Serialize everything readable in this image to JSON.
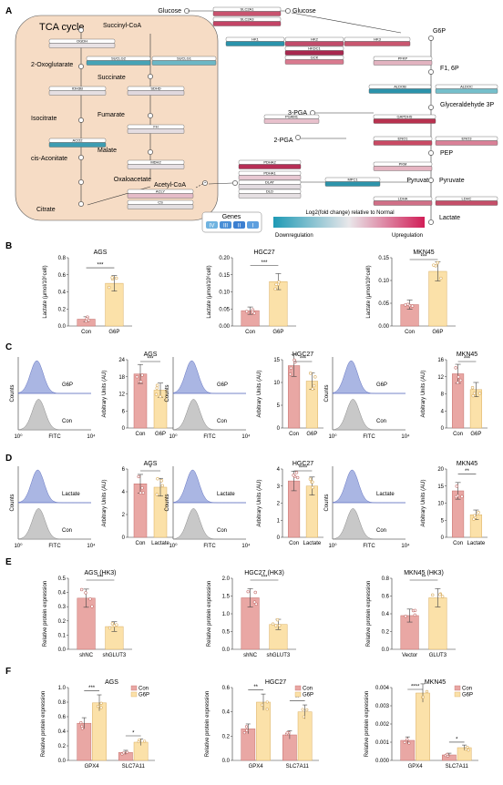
{
  "panelA": {
    "letter": "A",
    "tca_title": "TCA cycle",
    "metabolites": [
      "Glucose",
      "Glucose",
      "G6P",
      "F1, 6P",
      "Glyceraldehyde 3P",
      "3-PGA",
      "2-PGA",
      "PEP",
      "Pyruvate",
      "Pyruvate",
      "Acetyl-CoA",
      "Lactate",
      "Succinyl-CoA",
      "2-Oxoglutarate",
      "Succinate",
      "Isocitrate",
      "Fumarate",
      "Malate",
      "cis-Aconitate",
      "Oxaloacetate",
      "Citrate"
    ],
    "genes": [
      {
        "name": "SLC2A1",
        "color": "#c9536f"
      },
      {
        "name": "SLC2A3",
        "color": "#c34466"
      },
      {
        "name": "HK1",
        "color": "#2a93ab"
      },
      {
        "name": "HK2",
        "color": "#c24b6a"
      },
      {
        "name": "HK3",
        "color": "#c9566f"
      },
      {
        "name": "HKDC1",
        "color": "#a8284f"
      },
      {
        "name": "GCK",
        "color": "#d97a8f"
      },
      {
        "name": "PFKP",
        "color": "#e2b3c0"
      },
      {
        "name": "ALDOB",
        "color": "#2c93ab"
      },
      {
        "name": "ALDOC",
        "color": "#75bfcb"
      },
      {
        "name": "GAPDHS",
        "color": "#b8324f"
      },
      {
        "name": "PGAM1",
        "color": "#e8c0cc"
      },
      {
        "name": "ENO1",
        "color": "#c94a64"
      },
      {
        "name": "ENO3",
        "color": "#d98097"
      },
      {
        "name": "PKM",
        "color": "#e6b5c2"
      },
      {
        "name": "MPC1",
        "color": "#2d94ab"
      },
      {
        "name": "LDHA",
        "color": "#d06f87"
      },
      {
        "name": "LDHC",
        "color": "#c54e69"
      },
      {
        "name": "PDHA2",
        "color": "#b72e55"
      },
      {
        "name": "PDHA1",
        "color": "#e8c8d2"
      },
      {
        "name": "DLAT",
        "color": "#e3dce1"
      },
      {
        "name": "DLD",
        "color": "#e6e0e3"
      },
      {
        "name": "OGDH",
        "color": "#e8e2e5"
      },
      {
        "name": "SUCLG2",
        "color": "#46a3b6"
      },
      {
        "name": "SUCLG1",
        "color": "#6cb7c5"
      },
      {
        "name": "SDHD",
        "color": "#e0d8de"
      },
      {
        "name": "FH",
        "color": "#e4dde1"
      },
      {
        "name": "MDH2",
        "color": "#e7e0e4"
      },
      {
        "name": "IDH3B",
        "color": "#e5dfe2"
      },
      {
        "name": "ACO2",
        "color": "#3e9db2"
      },
      {
        "name": "ACLY",
        "color": "#e5bcc8"
      },
      {
        "name": "CS",
        "color": "#e3dfe1"
      }
    ],
    "legend_title": "Genes",
    "legend_scale_title": "Log2(fold change) relative to Normal",
    "legend_low": "Downregulation",
    "legend_high": "Upregulation",
    "legend_cells": [
      "IV",
      "III",
      "II",
      "I"
    ]
  },
  "panelB": {
    "letter": "B",
    "ylabel": "Lactate (μmol/10⁶cell)",
    "charts": [
      {
        "title": "AGS",
        "categories": [
          "Con",
          "G6P"
        ],
        "values": [
          0.08,
          0.5
        ],
        "ylim": [
          0,
          0.8
        ],
        "ticks": [
          "0.0",
          "0.2",
          "0.4",
          "0.6",
          "0.8"
        ],
        "sig": "***"
      },
      {
        "title": "HGC27",
        "categories": [
          "Con",
          "G6P"
        ],
        "values": [
          0.045,
          0.13
        ],
        "ylim": [
          0,
          0.2
        ],
        "ticks": [
          "0.00",
          "0.05",
          "0.10",
          "0.15",
          "0.20"
        ],
        "sig": "***"
      },
      {
        "title": "MKN45",
        "categories": [
          "Con",
          "G6P"
        ],
        "values": [
          0.047,
          0.12
        ],
        "ylim": [
          0,
          0.15
        ],
        "ticks": [
          "0.00",
          "0.05",
          "0.10",
          "0.15"
        ],
        "sig": "***"
      }
    ]
  },
  "panelC": {
    "letter": "C",
    "ylabel": "Arbitrary Units (AU)",
    "flow_ylabel": "Counts",
    "flow_xlabel": "FITC",
    "flow_x0": "10⁰",
    "flow_x1": "10⁴",
    "labels": [
      "G6P",
      "Con"
    ],
    "charts": [
      {
        "title": "AGS",
        "categories": [
          "Con",
          "G6P"
        ],
        "values": [
          19,
          13.3
        ],
        "ylim": [
          0,
          24
        ],
        "ticks": [
          "0",
          "6",
          "12",
          "18",
          "24"
        ],
        "sig": "***"
      },
      {
        "title": "HGC27",
        "categories": [
          "Con",
          "G6P"
        ],
        "values": [
          13.7,
          10.3
        ],
        "ylim": [
          0,
          15
        ],
        "ticks": [
          "0",
          "5",
          "10",
          "15"
        ],
        "sig": "***"
      },
      {
        "title": "MKN45",
        "categories": [
          "Con",
          "G6P"
        ],
        "values": [
          12.7,
          9
        ],
        "ylim": [
          0,
          16
        ],
        "ticks": [
          "0",
          "4",
          "8",
          "12",
          "16"
        ],
        "sig": "***"
      }
    ]
  },
  "panelD": {
    "letter": "D",
    "ylabel": "Arbitrary Units (AU)",
    "flow_ylabel": "Counts",
    "flow_xlabel": "FITC",
    "flow_x0": "10⁰",
    "flow_x1": "10⁴",
    "labels": [
      "Lactate",
      "Con"
    ],
    "charts": [
      {
        "title": "AGS",
        "categories": [
          "Con",
          "Lactate"
        ],
        "values": [
          4.7,
          4.4
        ],
        "ylim": [
          0,
          6
        ],
        "ticks": [
          "0",
          "2",
          "4",
          "6"
        ],
        "sig": "*"
      },
      {
        "title": "HGC27",
        "categories": [
          "Con",
          "Lactate"
        ],
        "values": [
          3.3,
          3
        ],
        "ylim": [
          0,
          4
        ],
        "ticks": [
          "0",
          "1",
          "2",
          "3",
          "4"
        ],
        "sig": "****"
      },
      {
        "title": "MKN45",
        "categories": [
          "Con",
          "Lactate"
        ],
        "values": [
          13.6,
          6.6
        ],
        "ylim": [
          0,
          20
        ],
        "ticks": [
          "0",
          "5",
          "10",
          "15",
          "20"
        ],
        "sig": "**"
      }
    ]
  },
  "panelE": {
    "letter": "E",
    "ylabel": "Relative protein expression",
    "charts": [
      {
        "title": "AGS (HK3)",
        "categories": [
          "shNC",
          "shGLUT3"
        ],
        "values": [
          0.36,
          0.16
        ],
        "ylim": [
          0,
          0.5
        ],
        "ticks": [
          "0.0",
          "0.1",
          "0.2",
          "0.3",
          "0.4",
          "0.5"
        ],
        "sig": "***"
      },
      {
        "title": "HGC27 (HK3)",
        "categories": [
          "shNC",
          "shGLUT3"
        ],
        "values": [
          1.45,
          0.7
        ],
        "ylim": [
          0,
          2.0
        ],
        "ticks": [
          "0.0",
          "0.5",
          "1.0",
          "1.5",
          "2.0"
        ],
        "sig": "***"
      },
      {
        "title": "MKN45 (HK3)",
        "categories": [
          "Vector",
          "GLUT3"
        ],
        "values": [
          0.38,
          0.58
        ],
        "ylim": [
          0,
          0.8
        ],
        "ticks": [
          "0.0",
          "0.2",
          "0.4",
          "0.6",
          "0.8"
        ],
        "sig": "**"
      }
    ]
  },
  "panelF": {
    "letter": "F",
    "ylabel": "Relative protein expression",
    "legend": [
      "Con",
      "G6P"
    ],
    "charts": [
      {
        "title": "AGS",
        "groups": [
          "GPX4",
          "SLC7A11"
        ],
        "con": [
          0.51,
          0.11
        ],
        "g6p": [
          0.79,
          0.25
        ],
        "ylim": [
          0,
          1.0
        ],
        "ticks": [
          "0.0",
          "0.2",
          "0.4",
          "0.6",
          "0.8",
          "1.0"
        ],
        "sig": [
          "***",
          "*"
        ]
      },
      {
        "title": "HGC27",
        "groups": [
          "GPX4",
          "SLC7A11"
        ],
        "con": [
          0.26,
          0.21
        ],
        "g6p": [
          0.48,
          0.4
        ],
        "ylim": [
          0,
          0.6
        ],
        "ticks": [
          "0.0",
          "0.2",
          "0.4",
          "0.6"
        ],
        "sig": [
          "**",
          "**"
        ]
      },
      {
        "title": "MKN45",
        "groups": [
          "GPX4",
          "SLC7A11"
        ],
        "con": [
          0.0011,
          0.0003
        ],
        "g6p": [
          0.0037,
          0.0007
        ],
        "ylim": [
          0,
          0.004
        ],
        "ticks": [
          "0.000",
          "0.001",
          "0.002",
          "0.003",
          "0.004"
        ],
        "sig": [
          "****",
          "*"
        ]
      }
    ]
  },
  "colors": {
    "con_bar": "#e9a7a4",
    "con_edge": "#c46f6c",
    "trt_bar": "#fbe1a9",
    "trt_edge": "#d9ad5f",
    "flow_blue": "#aab6e3",
    "flow_grey": "#c8c8c8",
    "tca_bg": "#f6dcc5",
    "up": "#d11e57",
    "down": "#1e9ab5"
  }
}
